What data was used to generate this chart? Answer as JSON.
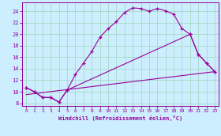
{
  "xlabel": "Windchill (Refroidissement éolien,°C)",
  "bg_color": "#cceeff",
  "line_color": "#990099",
  "grid_color": "#aaddcc",
  "xlim": [
    -0.5,
    23.5
  ],
  "ylim": [
    7.5,
    25.5
  ],
  "yticks": [
    8,
    10,
    12,
    14,
    16,
    18,
    20,
    22,
    24
  ],
  "xticks": [
    0,
    1,
    2,
    3,
    4,
    5,
    6,
    7,
    8,
    9,
    10,
    11,
    12,
    13,
    14,
    15,
    16,
    17,
    18,
    19,
    20,
    21,
    22,
    23
  ],
  "line1_x": [
    0,
    1,
    2,
    3,
    4,
    5,
    6,
    7,
    8,
    9,
    10,
    11,
    12,
    13,
    14,
    15,
    16,
    17,
    18,
    19,
    20,
    21,
    22,
    23
  ],
  "line1_y": [
    10.7,
    10.0,
    9.0,
    9.0,
    8.2,
    10.3,
    13.0,
    15.0,
    17.0,
    19.5,
    21.0,
    22.2,
    23.8,
    24.6,
    24.5,
    24.0,
    24.5,
    24.1,
    23.5,
    21.0,
    20.0,
    16.5,
    15.0,
    13.5
  ],
  "line2_x": [
    0,
    1,
    2,
    3,
    4,
    5,
    20,
    21,
    22,
    23
  ],
  "line2_y": [
    10.7,
    10.0,
    9.0,
    9.0,
    8.2,
    10.3,
    20.0,
    16.5,
    15.0,
    13.5
  ],
  "line3_x": [
    0,
    23
  ],
  "line3_y": [
    9.5,
    13.5
  ]
}
